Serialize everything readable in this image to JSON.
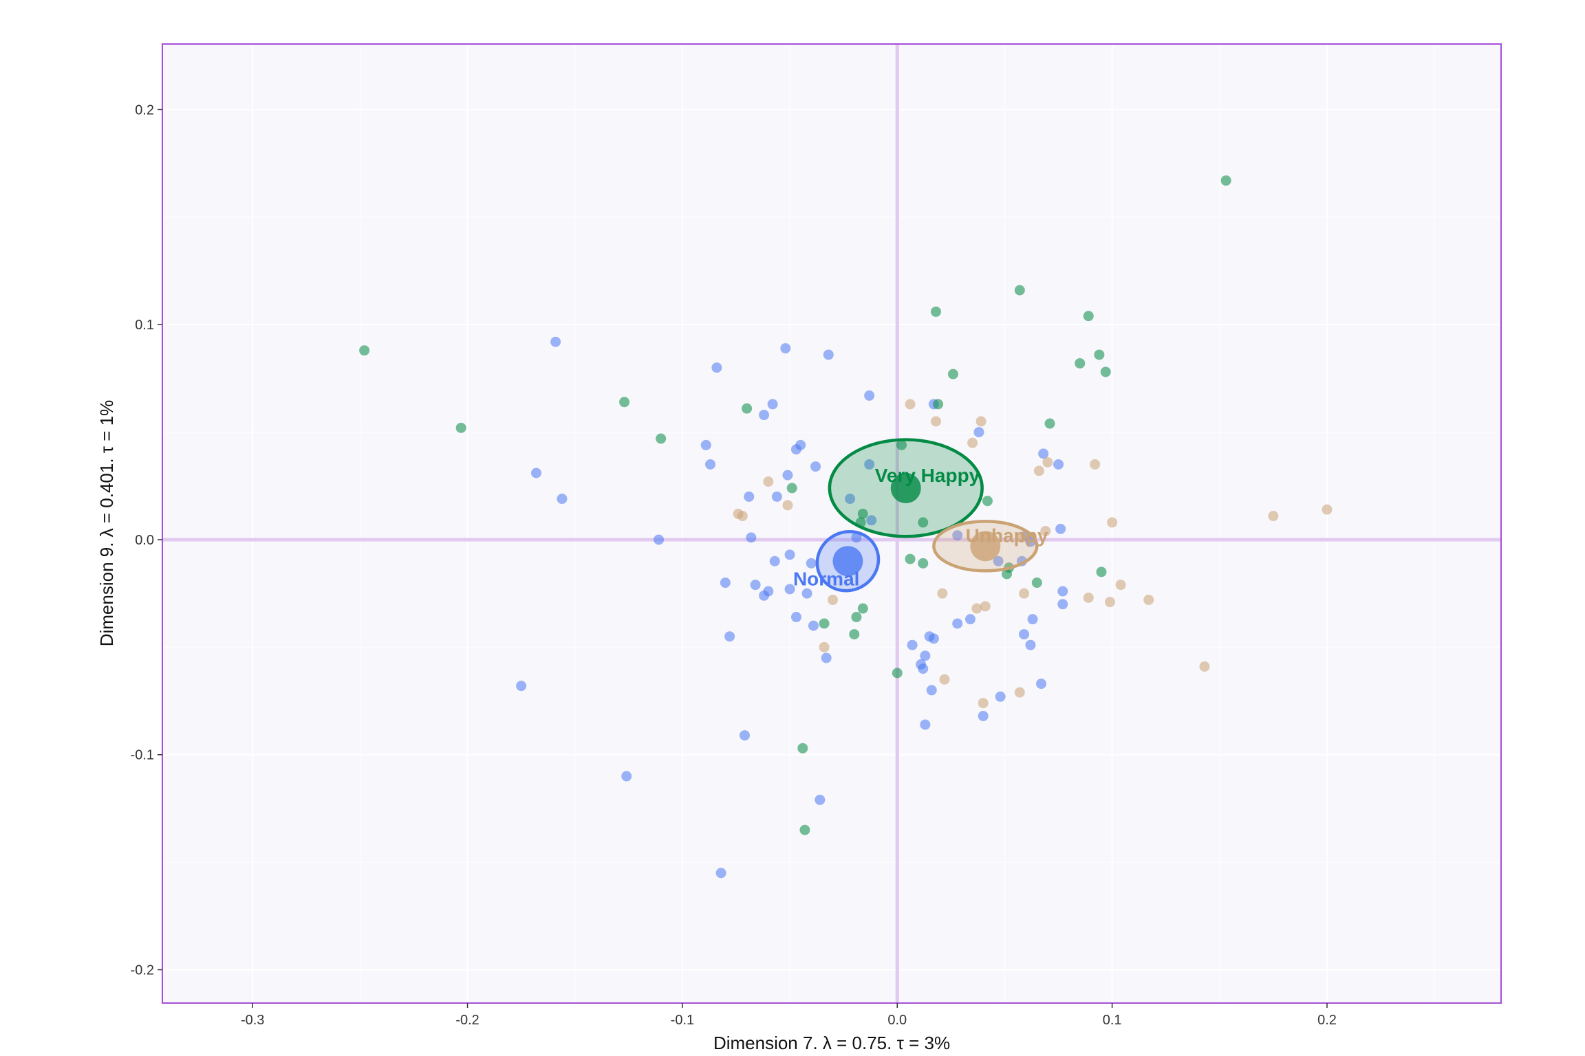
{
  "chart_data": {
    "type": "scatter",
    "xlabel": "Dimension 7.   λ = 0.75.  τ = 3%",
    "ylabel": "Dimension 9.   λ = 0.401.  τ = 1%",
    "xlim": [
      -0.342,
      0.281
    ],
    "ylim": [
      -0.2155,
      0.2305
    ],
    "x_ticks": [
      -0.3,
      -0.2,
      -0.1,
      0.0,
      0.1,
      0.2
    ],
    "x_tick_labels": [
      "-0.3",
      "-0.2",
      "-0.1",
      "0.0",
      "0.1",
      "0.2"
    ],
    "y_ticks": [
      -0.2,
      -0.1,
      0.0,
      0.1,
      0.2
    ],
    "y_tick_labels": [
      "-0.2",
      "-0.1",
      "0.0",
      "0.1",
      "0.2"
    ],
    "grid": true,
    "legend": "none",
    "colors": {
      "panel_bg": "#f8f7fb",
      "panel_border": "#a64fd8",
      "zero_line": "#e2c9ef",
      "grid_line": "#ffffff",
      "Normal": "#4b78f2",
      "Very Happy": "#038a45",
      "Unhappy": "#caa274"
    },
    "series": [
      {
        "name": "Normal",
        "color": "#4b78f2",
        "centroid": [
          -0.023,
          -0.01
        ],
        "ellipse": {
          "rx": 0.0145,
          "ry": 0.0135,
          "rotation_deg": -30
        },
        "label_pos": [
          -0.033,
          -0.018
        ],
        "points": [
          [
            -0.159,
            0.092
          ],
          [
            -0.168,
            0.031
          ],
          [
            -0.156,
            0.019
          ],
          [
            -0.111,
            0.0
          ],
          [
            -0.175,
            -0.068
          ],
          [
            -0.084,
            0.08
          ],
          [
            -0.052,
            0.089
          ],
          [
            -0.032,
            0.086
          ],
          [
            -0.058,
            0.063
          ],
          [
            -0.062,
            0.058
          ],
          [
            -0.089,
            0.044
          ],
          [
            -0.087,
            0.035
          ],
          [
            -0.047,
            0.042
          ],
          [
            -0.045,
            0.044
          ],
          [
            -0.038,
            0.034
          ],
          [
            -0.051,
            0.03
          ],
          [
            -0.056,
            0.02
          ],
          [
            -0.069,
            0.02
          ],
          [
            -0.068,
            0.001
          ],
          [
            -0.05,
            -0.007
          ],
          [
            -0.057,
            -0.01
          ],
          [
            -0.04,
            -0.011
          ],
          [
            -0.08,
            -0.02
          ],
          [
            -0.066,
            -0.021
          ],
          [
            -0.06,
            -0.024
          ],
          [
            -0.062,
            -0.026
          ],
          [
            -0.05,
            -0.023
          ],
          [
            -0.042,
            -0.025
          ],
          [
            -0.078,
            -0.045
          ],
          [
            -0.047,
            -0.036
          ],
          [
            -0.039,
            -0.04
          ],
          [
            -0.033,
            -0.055
          ],
          [
            -0.071,
            -0.091
          ],
          [
            -0.036,
            -0.121
          ],
          [
            -0.126,
            -0.11
          ],
          [
            -0.082,
            -0.155
          ],
          [
            -0.013,
            0.067
          ],
          [
            -0.013,
            0.035
          ],
          [
            -0.022,
            0.019
          ],
          [
            -0.012,
            0.009
          ],
          [
            -0.019,
            0.001
          ],
          [
            0.017,
            0.063
          ],
          [
            0.038,
            0.05
          ],
          [
            0.068,
            0.04
          ],
          [
            0.075,
            0.035
          ],
          [
            0.028,
            0.002
          ],
          [
            0.076,
            0.005
          ],
          [
            0.06,
            0.002
          ],
          [
            0.062,
            -0.001
          ],
          [
            0.047,
            -0.01
          ],
          [
            0.058,
            -0.01
          ],
          [
            0.077,
            -0.024
          ],
          [
            0.077,
            -0.03
          ],
          [
            0.063,
            -0.037
          ],
          [
            0.059,
            -0.044
          ],
          [
            0.062,
            -0.049
          ],
          [
            0.034,
            -0.037
          ],
          [
            0.028,
            -0.039
          ],
          [
            0.015,
            -0.045
          ],
          [
            0.017,
            -0.046
          ],
          [
            0.007,
            -0.049
          ],
          [
            0.013,
            -0.054
          ],
          [
            0.011,
            -0.058
          ],
          [
            0.012,
            -0.06
          ],
          [
            0.016,
            -0.07
          ],
          [
            0.048,
            -0.073
          ],
          [
            0.067,
            -0.067
          ],
          [
            0.04,
            -0.082
          ],
          [
            0.013,
            -0.086
          ]
        ]
      },
      {
        "name": "Very Happy",
        "color": "#038a45",
        "centroid": [
          0.004,
          0.024
        ],
        "ellipse": {
          "rx": 0.0355,
          "ry": 0.0225,
          "rotation_deg": 0
        },
        "label_pos": [
          0.014,
          0.03
        ],
        "points": [
          [
            -0.248,
            0.088
          ],
          [
            -0.203,
            0.052
          ],
          [
            -0.127,
            0.064
          ],
          [
            -0.11,
            0.047
          ],
          [
            -0.07,
            0.061
          ],
          [
            -0.049,
            0.024
          ],
          [
            0.153,
            0.167
          ],
          [
            0.057,
            0.116
          ],
          [
            0.018,
            0.106
          ],
          [
            0.089,
            0.104
          ],
          [
            0.094,
            0.086
          ],
          [
            0.085,
            0.082
          ],
          [
            0.097,
            0.078
          ],
          [
            0.026,
            0.077
          ],
          [
            0.019,
            0.063
          ],
          [
            0.071,
            0.054
          ],
          [
            0.002,
            0.044
          ],
          [
            0.042,
            0.018
          ],
          [
            0.012,
            0.008
          ],
          [
            -0.016,
            0.012
          ],
          [
            -0.017,
            0.008
          ],
          [
            0.006,
            -0.009
          ],
          [
            0.012,
            -0.011
          ],
          [
            0.052,
            -0.013
          ],
          [
            0.051,
            -0.016
          ],
          [
            0.065,
            -0.02
          ],
          [
            0.095,
            -0.015
          ],
          [
            -0.034,
            -0.039
          ],
          [
            -0.016,
            -0.032
          ],
          [
            -0.019,
            -0.036
          ],
          [
            -0.02,
            -0.044
          ],
          [
            0.0,
            -0.062
          ],
          [
            -0.044,
            -0.097
          ],
          [
            -0.043,
            -0.135
          ]
        ]
      },
      {
        "name": "Unhappy",
        "color": "#caa274",
        "centroid": [
          0.041,
          -0.003
        ],
        "ellipse": {
          "rx": 0.024,
          "ry": 0.0115,
          "rotation_deg": 0
        },
        "label_pos": [
          0.051,
          0.002
        ],
        "points": [
          [
            -0.06,
            0.027
          ],
          [
            -0.074,
            0.012
          ],
          [
            -0.072,
            0.011
          ],
          [
            -0.051,
            0.016
          ],
          [
            0.006,
            0.063
          ],
          [
            0.018,
            0.055
          ],
          [
            0.039,
            0.055
          ],
          [
            0.035,
            0.045
          ],
          [
            0.07,
            0.036
          ],
          [
            0.066,
            0.032
          ],
          [
            0.092,
            0.035
          ],
          [
            0.1,
            0.008
          ],
          [
            0.175,
            0.011
          ],
          [
            0.2,
            0.014
          ],
          [
            0.069,
            0.004
          ],
          [
            0.058,
            0.001
          ],
          [
            0.021,
            -0.025
          ],
          [
            0.037,
            -0.032
          ],
          [
            0.041,
            -0.031
          ],
          [
            0.059,
            -0.025
          ],
          [
            0.089,
            -0.027
          ],
          [
            0.099,
            -0.029
          ],
          [
            0.104,
            -0.021
          ],
          [
            0.117,
            -0.028
          ],
          [
            0.143,
            -0.059
          ],
          [
            0.057,
            -0.071
          ],
          [
            0.04,
            -0.076
          ],
          [
            0.022,
            -0.065
          ],
          [
            -0.03,
            -0.028
          ],
          [
            -0.034,
            -0.05
          ]
        ]
      }
    ]
  }
}
